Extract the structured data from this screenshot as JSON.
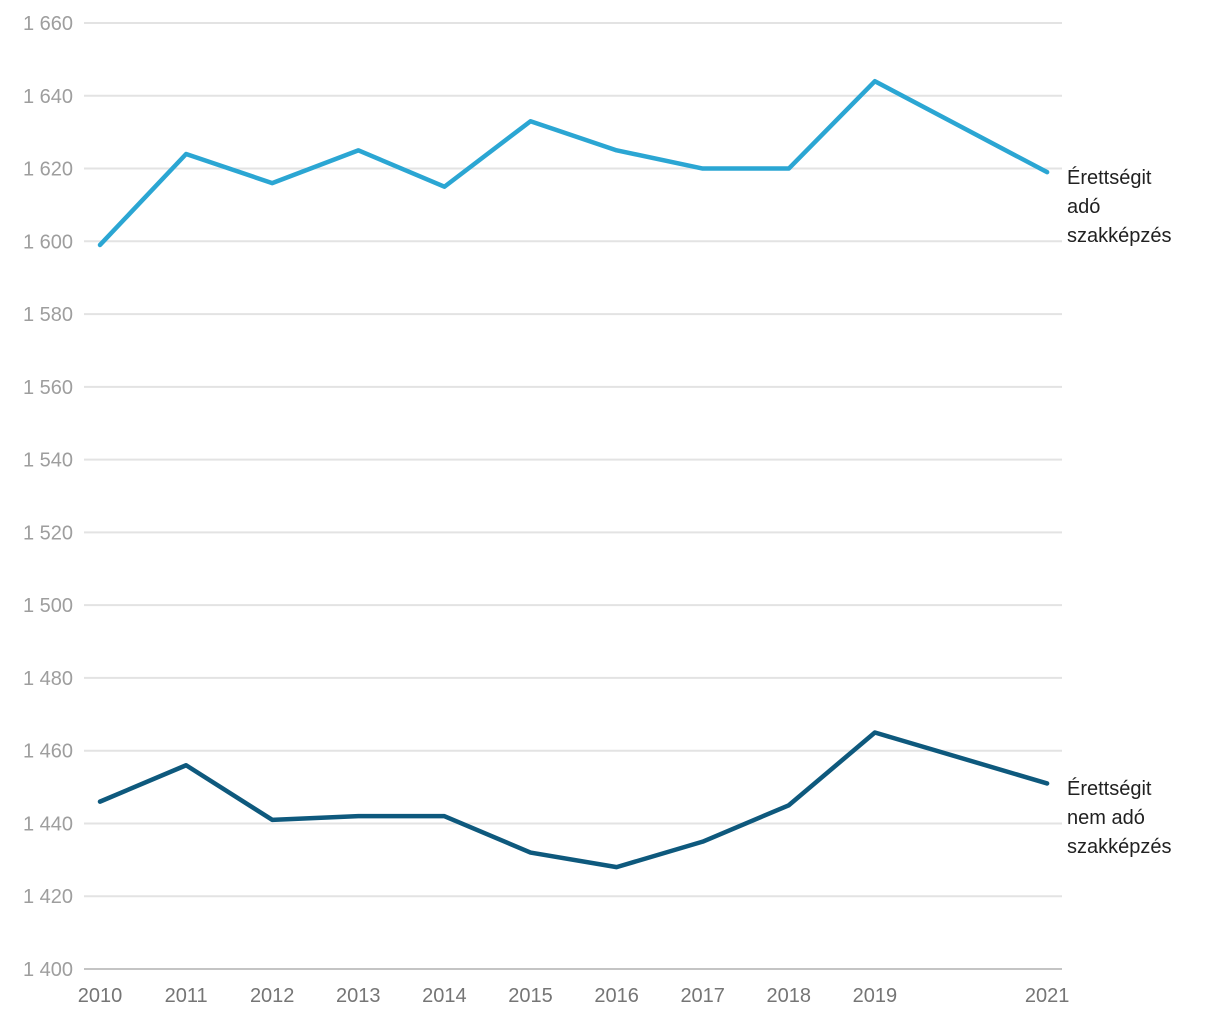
{
  "chart_data": {
    "type": "line",
    "title": "",
    "xlabel": "",
    "ylabel": "",
    "x": [
      2010,
      2011,
      2012,
      2013,
      2014,
      2015,
      2016,
      2017,
      2018,
      2019,
      2021
    ],
    "x_tick_labels": [
      "2010",
      "2011",
      "2012",
      "2013",
      "2014",
      "2015",
      "2016",
      "2017",
      "2018",
      "2019",
      "2021"
    ],
    "series": [
      {
        "name": "Érettségit adó szakképzés",
        "color": "#2BA6D3",
        "values": [
          1599,
          1624,
          1616,
          1625,
          1615,
          1633,
          1625,
          1620,
          1620,
          1644,
          1619
        ],
        "label_lines": [
          "Érettségit",
          "adó",
          "szakképzés"
        ]
      },
      {
        "name": "Érettségit nem adó szakképzés",
        "color": "#0E597D",
        "values": [
          1446,
          1456,
          1441,
          1442,
          1442,
          1432,
          1428,
          1435,
          1445,
          1465,
          1451
        ],
        "label_lines": [
          "Érettségit",
          "nem adó",
          "szakképzés"
        ]
      }
    ],
    "ylim": [
      1400,
      1660
    ],
    "ytick_step": 20,
    "ytick_values": [
      1400,
      1420,
      1440,
      1460,
      1480,
      1500,
      1520,
      1540,
      1560,
      1580,
      1600,
      1620,
      1640,
      1660
    ],
    "ytick_labels": [
      "1 400",
      "1 420",
      "1 440",
      "1 460",
      "1 480",
      "1 500",
      "1 520",
      "1 540",
      "1 560",
      "1 580",
      "1 600",
      "1 620",
      "1 640",
      "1 660"
    ],
    "grid": true,
    "legend_position": "right-annotations",
    "colors": {
      "background": "#FFFFFF",
      "gridline": "#E3E3E3",
      "baseline": "#C4C4C4",
      "ytick_text": "#9E9E9E",
      "xtick_text": "#757575",
      "annotation_text": "#212121"
    }
  }
}
